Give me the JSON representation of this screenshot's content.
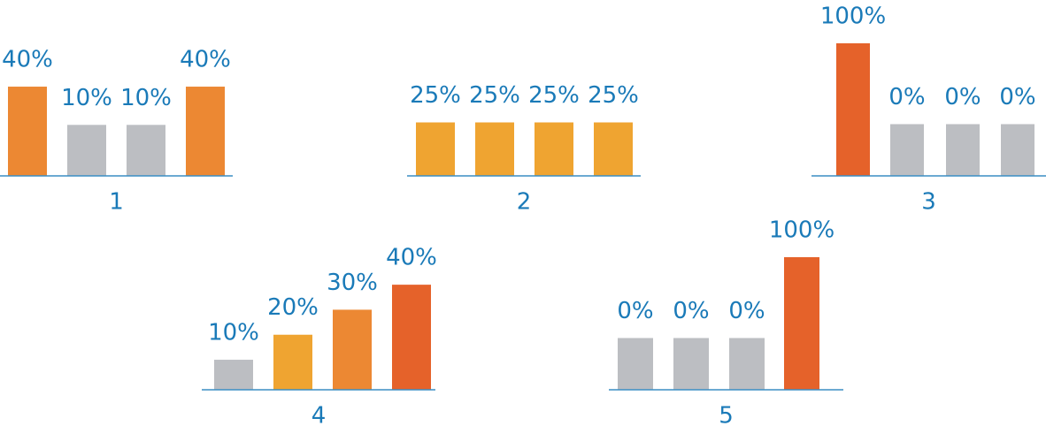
{
  "chart_data": [
    {
      "type": "bar",
      "title": "1",
      "categories": [
        null,
        null,
        null,
        null
      ],
      "values": [
        40,
        10,
        10,
        40
      ],
      "value_labels": [
        "40%",
        "10%",
        "10%",
        "40%"
      ],
      "colors": [
        "#ec8833",
        "#bcbec2",
        "#bcbec2",
        "#ec8833"
      ],
      "ylim": [
        -30,
        74
      ]
    },
    {
      "type": "bar",
      "title": "2",
      "categories": [
        null,
        null,
        null,
        null
      ],
      "values": [
        25,
        25,
        25,
        25
      ],
      "value_labels": [
        "25%",
        "25%",
        "25%",
        "25%"
      ],
      "colors": [
        "#efa431",
        "#efa431",
        "#efa431",
        "#efa431"
      ],
      "ylim": [
        0,
        62
      ]
    },
    {
      "type": "bar",
      "title": "3",
      "categories": [
        null,
        null,
        null,
        null
      ],
      "values": [
        100,
        0,
        0,
        0
      ],
      "value_labels": [
        "100%",
        "0%",
        "0%",
        "0%"
      ],
      "colors": [
        "#e5622a",
        "#bcbec2",
        "#bcbec2",
        "#bcbec2"
      ],
      "ylim": [
        -64,
        100
      ]
    },
    {
      "type": "bar",
      "title": "4",
      "categories": [
        null,
        null,
        null,
        null
      ],
      "values": [
        10,
        20,
        30,
        40
      ],
      "value_labels": [
        "10%",
        "20%",
        "30%",
        "40%"
      ],
      "colors": [
        "#bcbec2",
        "#efa431",
        "#ec8833",
        "#e5622a"
      ],
      "ylim": [
        -2,
        51
      ]
    },
    {
      "type": "bar",
      "title": "5",
      "categories": [
        null,
        null,
        null,
        null
      ],
      "values": [
        0,
        0,
        0,
        100
      ],
      "value_labels": [
        "0%",
        "0%",
        "0%",
        "100%"
      ],
      "colors": [
        "#bcbec2",
        "#bcbec2",
        "#bcbec2",
        "#e5622a"
      ],
      "ylim": [
        -64,
        100
      ]
    }
  ]
}
